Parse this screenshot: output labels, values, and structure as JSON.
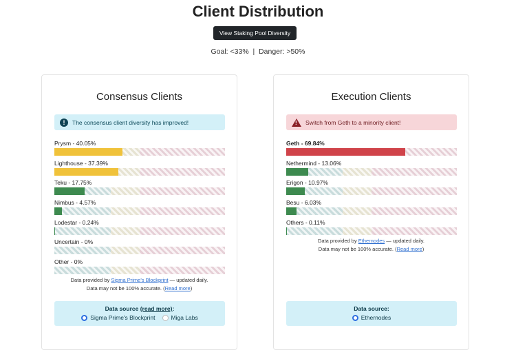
{
  "header": {
    "title": "Client Distribution",
    "button_label": "View Staking Pool Diversity",
    "goal_text": "Goal: <33%  |  Danger: >50%"
  },
  "colors": {
    "danger": "#d0434a",
    "warning": "#f0c23a",
    "good": "#3d8a4f"
  },
  "consensus": {
    "title": "Consensus Clients",
    "alert": {
      "type": "info",
      "icon": "exclamation-circle-icon",
      "text": "The consensus client diversity has improved!"
    },
    "clients": [
      {
        "name": "Prysm",
        "percent": 40.05,
        "label": "Prysm - 40.05%",
        "status": "warning"
      },
      {
        "name": "Lighthouse",
        "percent": 37.39,
        "label": "Lighthouse - 37.39%",
        "status": "warning"
      },
      {
        "name": "Teku",
        "percent": 17.75,
        "label": "Teku - 17.75%",
        "status": "good"
      },
      {
        "name": "Nimbus",
        "percent": 4.57,
        "label": "Nimbus - 4.57%",
        "status": "good"
      },
      {
        "name": "Lodestar",
        "percent": 0.24,
        "label": "Lodestar - 0.24%",
        "status": "good"
      },
      {
        "name": "Uncertain",
        "percent": 0,
        "label": "Uncertain - 0%",
        "status": "good"
      },
      {
        "name": "Other",
        "percent": 0,
        "label": "Other - 0%",
        "status": "good"
      }
    ],
    "footer": {
      "prefix": "Data provided by ",
      "link": "Sigma Prime's Blockprint",
      "suffix": " — updated daily.",
      "line2": "Data may not be 100% accurate. (",
      "read_more": "Read more",
      "close": ")"
    },
    "source": {
      "label": "Data source ",
      "read_more": "(read more)",
      "colon": ":",
      "options": [
        {
          "label": "Sigma Prime's Blockprint",
          "selected": true
        },
        {
          "label": "Miga Labs",
          "selected": false
        }
      ]
    }
  },
  "execution": {
    "title": "Execution Clients",
    "alert": {
      "type": "danger",
      "icon": "warning-triangle-icon",
      "text": "Switch from Geth to a minority client!"
    },
    "clients": [
      {
        "name": "Geth",
        "percent": 69.84,
        "label": "Geth - 69.84%",
        "status": "danger"
      },
      {
        "name": "Nethermind",
        "percent": 13.06,
        "label": "Nethermind - 13.06%",
        "status": "good"
      },
      {
        "name": "Erigon",
        "percent": 10.97,
        "label": "Erigon - 10.97%",
        "status": "good"
      },
      {
        "name": "Besu",
        "percent": 6.03,
        "label": "Besu - 6.03%",
        "status": "good"
      },
      {
        "name": "Others",
        "percent": 0.11,
        "label": "Others - 0.11%",
        "status": "good"
      }
    ],
    "footer": {
      "prefix": "Data provided by ",
      "link": "Ethernodes",
      "suffix": " — updated daily.",
      "line2": "Data may not be 100% accurate. (",
      "read_more": "Read more",
      "close": ")"
    },
    "source": {
      "label": "Data source:",
      "options": [
        {
          "label": "Ethernodes",
          "selected": true
        }
      ]
    }
  }
}
